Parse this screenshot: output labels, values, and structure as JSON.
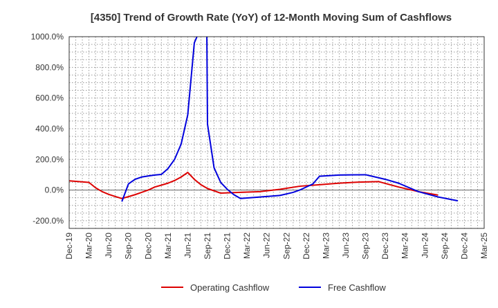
{
  "chart_data": {
    "type": "line",
    "title": "[4350]  Trend of Growth Rate (YoY) of 12-Month Moving Sum of Cashflows",
    "xlabel": "",
    "ylabel": "",
    "ylim": [
      -250,
      1000
    ],
    "y_ticks": [
      1000,
      800,
      600,
      400,
      200,
      0,
      -200
    ],
    "y_tick_labels": [
      "1000.0%",
      "800.0%",
      "600.0%",
      "400.0%",
      "200.0%",
      "0.0%",
      "-200.0%"
    ],
    "x_tick_labels": [
      "Dec-19",
      "Mar-20",
      "Jun-20",
      "Sep-20",
      "Dec-20",
      "Mar-21",
      "Jun-21",
      "Sep-21",
      "Dec-21",
      "Mar-22",
      "Jun-22",
      "Sep-22",
      "Dec-22",
      "Mar-23",
      "Jun-23",
      "Sep-23",
      "Dec-23",
      "Mar-24",
      "Jun-24",
      "Sep-24",
      "Dec-24",
      "Mar-25"
    ],
    "grid": true,
    "legend_position": "bottom-center",
    "series": [
      {
        "name": "Operating Cashflow",
        "color": "#dd0000",
        "points": [
          [
            0,
            60
          ],
          [
            3,
            50
          ],
          [
            4,
            15
          ],
          [
            5,
            -10
          ],
          [
            6,
            -28
          ],
          [
            7,
            -42
          ],
          [
            8,
            -55
          ],
          [
            9,
            -43
          ],
          [
            10,
            -30
          ],
          [
            11,
            -15
          ],
          [
            12,
            0
          ],
          [
            13,
            20
          ],
          [
            14,
            32
          ],
          [
            15,
            45
          ],
          [
            16,
            62
          ],
          [
            17,
            85
          ],
          [
            18,
            115
          ],
          [
            19,
            70
          ],
          [
            20,
            35
          ],
          [
            21,
            10
          ],
          [
            23,
            -20
          ],
          [
            26,
            -15
          ],
          [
            29,
            -10
          ],
          [
            32,
            5
          ],
          [
            35,
            25
          ],
          [
            38,
            35
          ],
          [
            41,
            45
          ],
          [
            44,
            52
          ],
          [
            47,
            55
          ],
          [
            50,
            20
          ],
          [
            53,
            -10
          ],
          [
            56,
            -33
          ]
        ]
      },
      {
        "name": "Free Cashflow",
        "color": "#0000dd",
        "points": [
          [
            8,
            -75
          ],
          [
            9,
            40
          ],
          [
            10,
            70
          ],
          [
            11,
            85
          ],
          [
            12,
            92
          ],
          [
            13,
            98
          ],
          [
            14,
            102
          ],
          [
            15,
            140
          ],
          [
            16,
            200
          ],
          [
            17,
            300
          ],
          [
            18,
            490
          ],
          [
            19,
            960
          ],
          [
            19.4,
            1000
          ],
          null,
          [
            20.9,
            1000
          ],
          [
            21,
            430
          ],
          [
            22,
            145
          ],
          [
            23,
            50
          ],
          [
            24,
            5
          ],
          [
            25,
            -30
          ],
          [
            26,
            -55
          ],
          [
            29,
            -45
          ],
          [
            32,
            -35
          ],
          [
            34,
            -15
          ],
          [
            35,
            0
          ],
          [
            37,
            40
          ],
          [
            38,
            90
          ],
          [
            41,
            98
          ],
          [
            45,
            100
          ],
          [
            48,
            70
          ],
          [
            50,
            45
          ],
          [
            53,
            -10
          ],
          [
            56,
            -45
          ],
          [
            59,
            -70
          ]
        ]
      }
    ]
  }
}
